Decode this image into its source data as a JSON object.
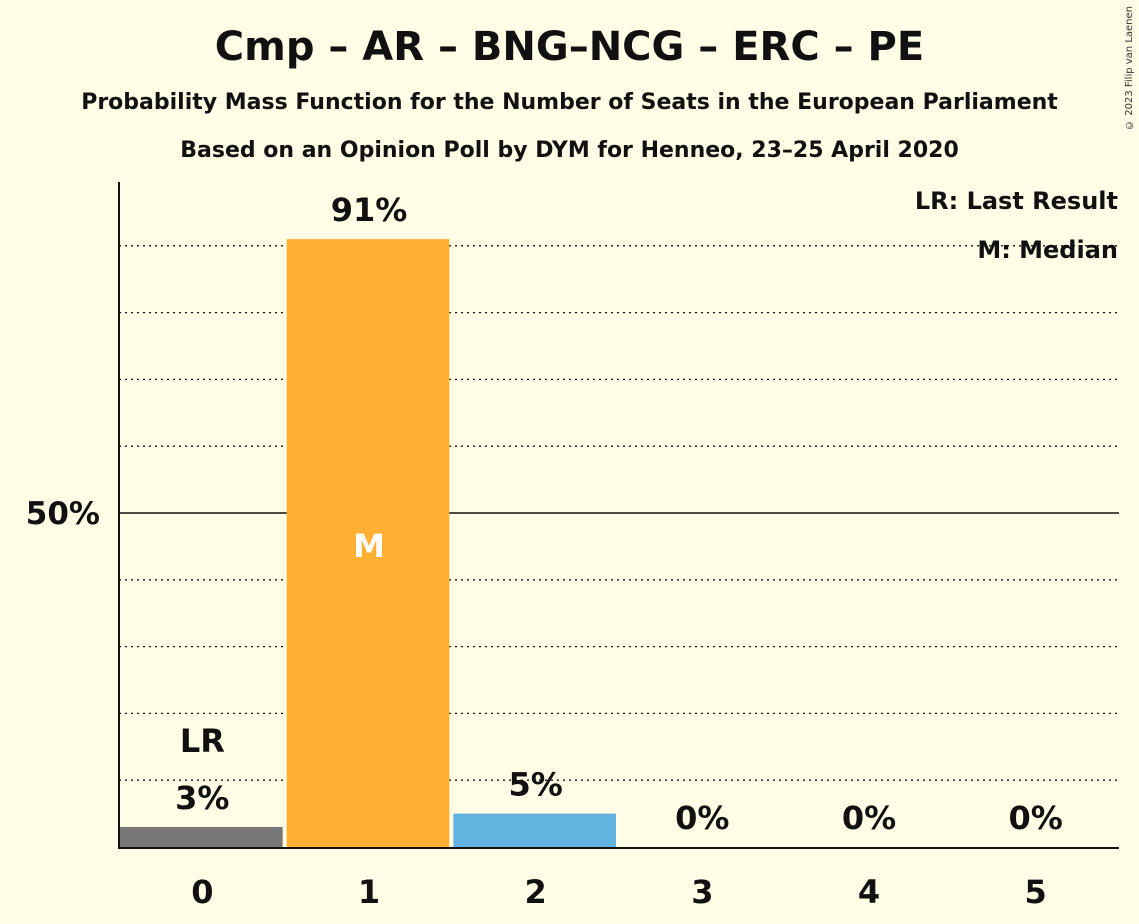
{
  "title": "Cmp – AR – BNG–NCG – ERC – PE",
  "subtitle": "Probability Mass Function for the Number of Seats in the European Parliament",
  "subtitle2": "Based on an Opinion Poll by DYM for Henneo, 23–25 April 2020",
  "copyright": "© 2023 Filip van Laenen",
  "legend": {
    "last_result": "LR: Last Result",
    "median": "M: Median"
  },
  "chart_data": {
    "type": "bar",
    "categories": [
      "0",
      "1",
      "2",
      "3",
      "4",
      "5"
    ],
    "values": [
      3,
      91,
      5,
      0,
      0,
      0
    ],
    "value_labels": [
      "3%",
      "91%",
      "5%",
      "0%",
      "0%",
      "0%"
    ],
    "bar_colors": [
      "#777777",
      "#ffb033",
      "#62b3e0",
      "#777777",
      "#777777",
      "#777777"
    ],
    "ylim": [
      0,
      100
    ],
    "yticks": [
      {
        "value": 50,
        "label": "50%"
      }
    ],
    "gridlines_dotted": [
      10,
      20,
      30,
      40,
      60,
      70,
      80,
      90
    ],
    "last_result_index": 0,
    "last_result_label": "LR",
    "median_index": 1,
    "median_label": "M",
    "legend_position": "top-right",
    "xlabel": "",
    "ylabel": ""
  }
}
